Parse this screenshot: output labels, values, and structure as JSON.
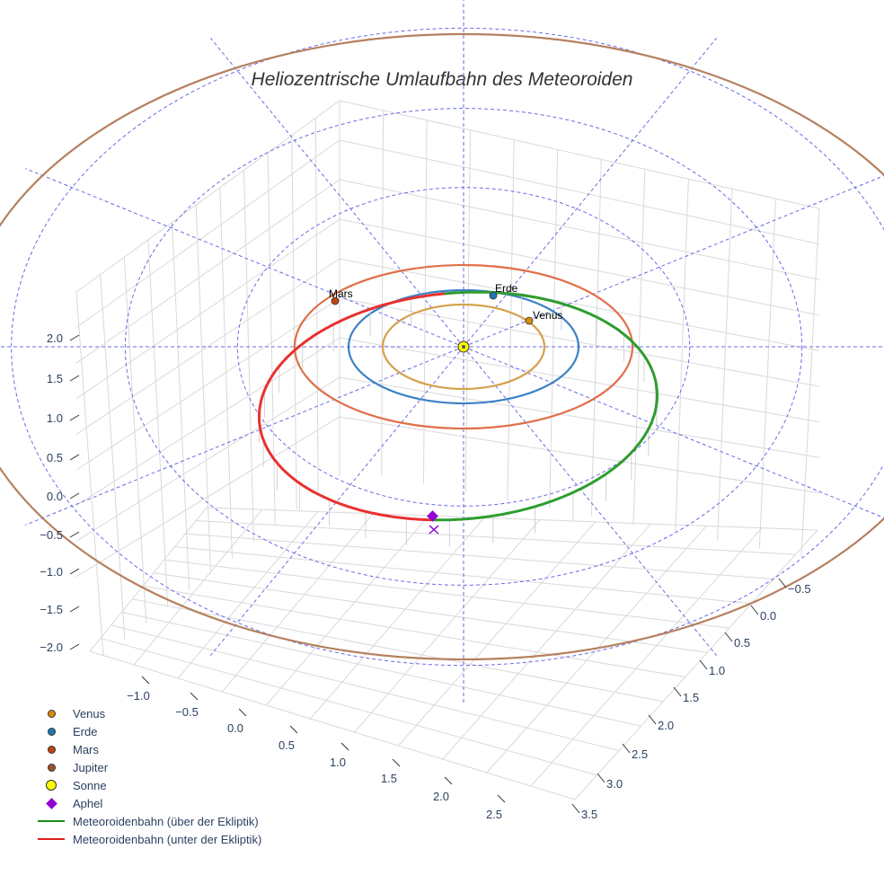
{
  "chart_data": {
    "type": "scatter3d",
    "title": "Heliozentrische Umlaufbahn des Meteoroiden",
    "axes": {
      "x": {
        "ticks": [
          "−1.0",
          "−0.5",
          "0.0",
          "0.5",
          "1.0",
          "1.5",
          "2.0",
          "2.5"
        ]
      },
      "y": {
        "ticks": [
          "−0.5",
          "0.0",
          "0.5",
          "1.0",
          "1.5",
          "2.0",
          "2.5",
          "3.0",
          "3.5"
        ]
      },
      "z": {
        "ticks": [
          "2.0",
          "1.5",
          "1.0",
          "0.5",
          "0.0",
          "−0.5",
          "−1.0",
          "−1.5",
          "−2.0"
        ]
      }
    },
    "planets": [
      {
        "name": "Venus",
        "label": "Venus",
        "color": "#d98b0f",
        "orbit_color": "#d4a14c",
        "radius_au": 0.72
      },
      {
        "name": "Erde",
        "label": "Erde",
        "color": "#1f77b4",
        "orbit_color": "#3b82c6",
        "radius_au": 1.0
      },
      {
        "name": "Mars",
        "label": "Mars",
        "color": "#c1440e",
        "orbit_color": "#e0704a",
        "radius_au": 1.52
      },
      {
        "name": "Jupiter",
        "label": "",
        "color": "#a0522d",
        "orbit_color": "#b5805e",
        "radius_au": 5.2
      }
    ],
    "sun": {
      "name": "Sonne",
      "color": "#ffff00"
    },
    "aphel": {
      "name": "Aphel",
      "color": "#9400d3"
    },
    "orbit_segments": [
      {
        "name": "Meteoroidenbahn (über der Ekliptik)",
        "color": "#2e9d2e"
      },
      {
        "name": "Meteoroidenbahn (unter der Ekliptik)",
        "color": "#e8312f"
      }
    ]
  },
  "legend": [
    {
      "label": "Venus",
      "symbol": "dot",
      "color": "#d98b0f"
    },
    {
      "label": "Erde",
      "symbol": "dot",
      "color": "#1f77b4"
    },
    {
      "label": "Mars",
      "symbol": "dot",
      "color": "#c1440e"
    },
    {
      "label": "Jupiter",
      "symbol": "dot",
      "color": "#a0522d"
    },
    {
      "label": "Sonne",
      "symbol": "bigdot",
      "color": "#ffff00"
    },
    {
      "label": "Aphel",
      "symbol": "diamond",
      "color": "#9400d3"
    },
    {
      "label": "Meteoroidenbahn (über der Ekliptik)",
      "symbol": "line",
      "color": "#1a8c1a"
    },
    {
      "label": "Meteoroidenbahn (unter der Ekliptik)",
      "symbol": "line",
      "color": "#e01f1f"
    }
  ]
}
